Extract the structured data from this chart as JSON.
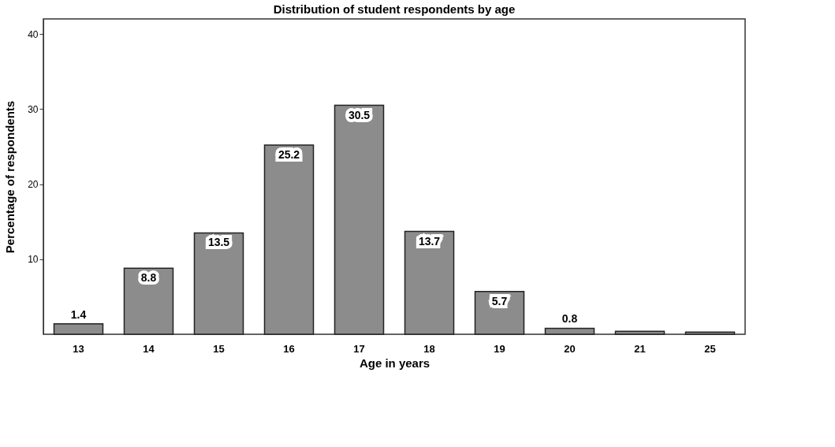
{
  "chart_data": {
    "type": "bar",
    "title": "Distribution of student respondents by age",
    "xlabel": "Age in years",
    "ylabel": "Percentage of respondents",
    "categories": [
      "13",
      "14",
      "15",
      "16",
      "17",
      "18",
      "19",
      "20",
      "21",
      "25"
    ],
    "values": [
      1.4,
      8.8,
      13.5,
      25.2,
      30.5,
      13.7,
      5.7,
      0.8,
      0.4,
      0.3
    ],
    "value_labels": [
      "1.4",
      "8.8",
      "13.5",
      "25.2",
      "30.5",
      "13.7",
      "5.7",
      "0.8",
      null,
      null
    ],
    "color": "#8c8c8c",
    "ylim": [
      0,
      42
    ],
    "yticks": [
      10,
      20,
      30,
      40
    ],
    "grid": false
  }
}
